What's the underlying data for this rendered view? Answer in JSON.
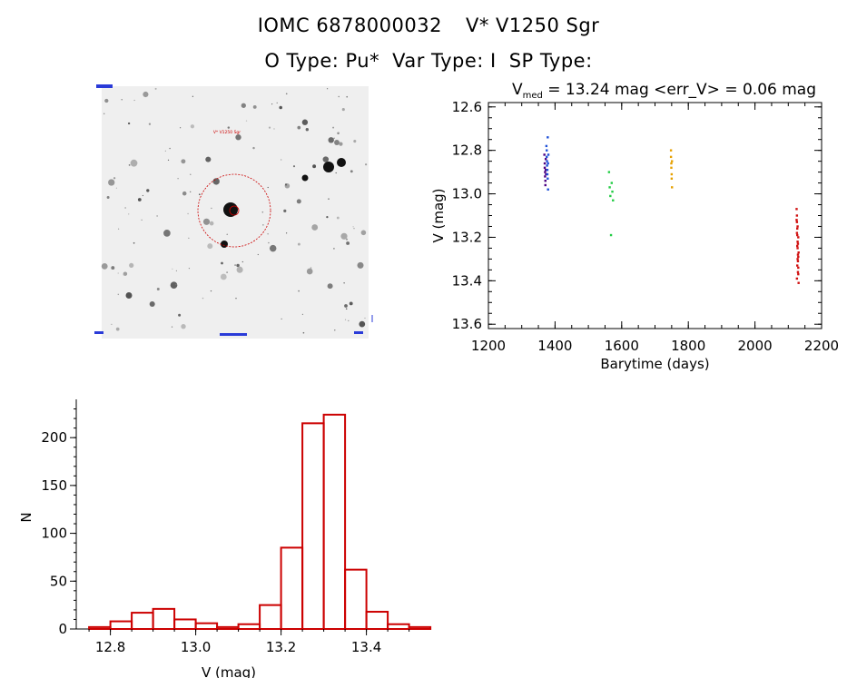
{
  "header": {
    "star_id": "IOMC 6878000032",
    "star_name": "V* V1250 Sgr",
    "o_type": "O Type: Pu*",
    "var_type": "Var Type: I",
    "sp_type": "SP Type:"
  },
  "finder": {
    "marker_label": "V*  V1250 Sgr"
  },
  "colors": {
    "hist": "#cc0000",
    "circle": "#cc0000"
  },
  "chart_data": [
    {
      "type": "scatter",
      "title_prefix": "V",
      "title_sub": "med",
      "title_rest": " = 13.24 mag <err_V> = 0.06 mag",
      "xlabel": "Barytime (days)",
      "ylabel": "V (mag)",
      "xlim": [
        1200,
        2200
      ],
      "ylim": [
        13.62,
        12.58
      ],
      "xticks": [
        1200,
        1400,
        1600,
        1800,
        2000,
        2200
      ],
      "yticks": [
        12.6,
        12.8,
        13.0,
        13.2,
        13.4,
        13.6
      ],
      "series": [
        {
          "name": "group1a",
          "color": "#4b0082",
          "x": [
            1368,
            1369,
            1369,
            1370,
            1370,
            1371,
            1371,
            1372,
            1372,
            1373
          ],
          "y": [
            12.82,
            12.86,
            12.88,
            12.9,
            12.92,
            12.94,
            12.96,
            12.84,
            12.89,
            12.91
          ]
        },
        {
          "name": "group1b",
          "color": "#1e50d8",
          "x": [
            1374,
            1375,
            1375,
            1376,
            1376,
            1377,
            1377,
            1378,
            1378,
            1379,
            1379,
            1380
          ],
          "y": [
            12.78,
            12.8,
            12.83,
            12.85,
            12.87,
            12.89,
            12.91,
            12.93,
            12.74,
            12.98,
            12.86,
            12.82
          ]
        },
        {
          "name": "group2",
          "color": "#22cc44",
          "x": [
            1562,
            1564,
            1566,
            1568,
            1570,
            1572,
            1574
          ],
          "y": [
            12.9,
            12.97,
            13.01,
            13.19,
            12.95,
            12.99,
            13.03
          ]
        },
        {
          "name": "group3",
          "color": "#e6a000",
          "x": [
            1748,
            1748,
            1749,
            1749,
            1750,
            1750,
            1751,
            1751
          ],
          "y": [
            12.8,
            12.83,
            12.86,
            12.88,
            12.91,
            12.93,
            12.97,
            12.85
          ]
        },
        {
          "name": "group4",
          "color": "#d01010",
          "x": [
            2125,
            2126,
            2126,
            2127,
            2127,
            2128,
            2128,
            2129,
            2129,
            2130,
            2130,
            2131,
            2125,
            2126,
            2127,
            2128,
            2129,
            2130,
            2131,
            2127,
            2128,
            2126,
            2129,
            2130
          ],
          "y": [
            13.07,
            13.1,
            13.13,
            13.16,
            13.19,
            13.22,
            13.25,
            13.28,
            13.31,
            13.34,
            13.37,
            13.41,
            13.12,
            13.18,
            13.24,
            13.3,
            13.36,
            13.2,
            13.27,
            13.33,
            13.15,
            13.39,
            13.23,
            13.29
          ]
        }
      ]
    },
    {
      "type": "bar",
      "xlabel": "V (mag)",
      "ylabel": "N",
      "xlim": [
        12.72,
        13.52
      ],
      "ylim": [
        0,
        240
      ],
      "xticks": [
        12.8,
        13.0,
        13.2,
        13.4
      ],
      "yticks": [
        0,
        50,
        100,
        150,
        200
      ],
      "bin_start": 12.75,
      "bin_width": 0.05,
      "values": [
        2,
        8,
        17,
        21,
        10,
        6,
        2,
        5,
        25,
        85,
        215,
        224,
        62,
        18,
        5,
        2
      ]
    }
  ]
}
